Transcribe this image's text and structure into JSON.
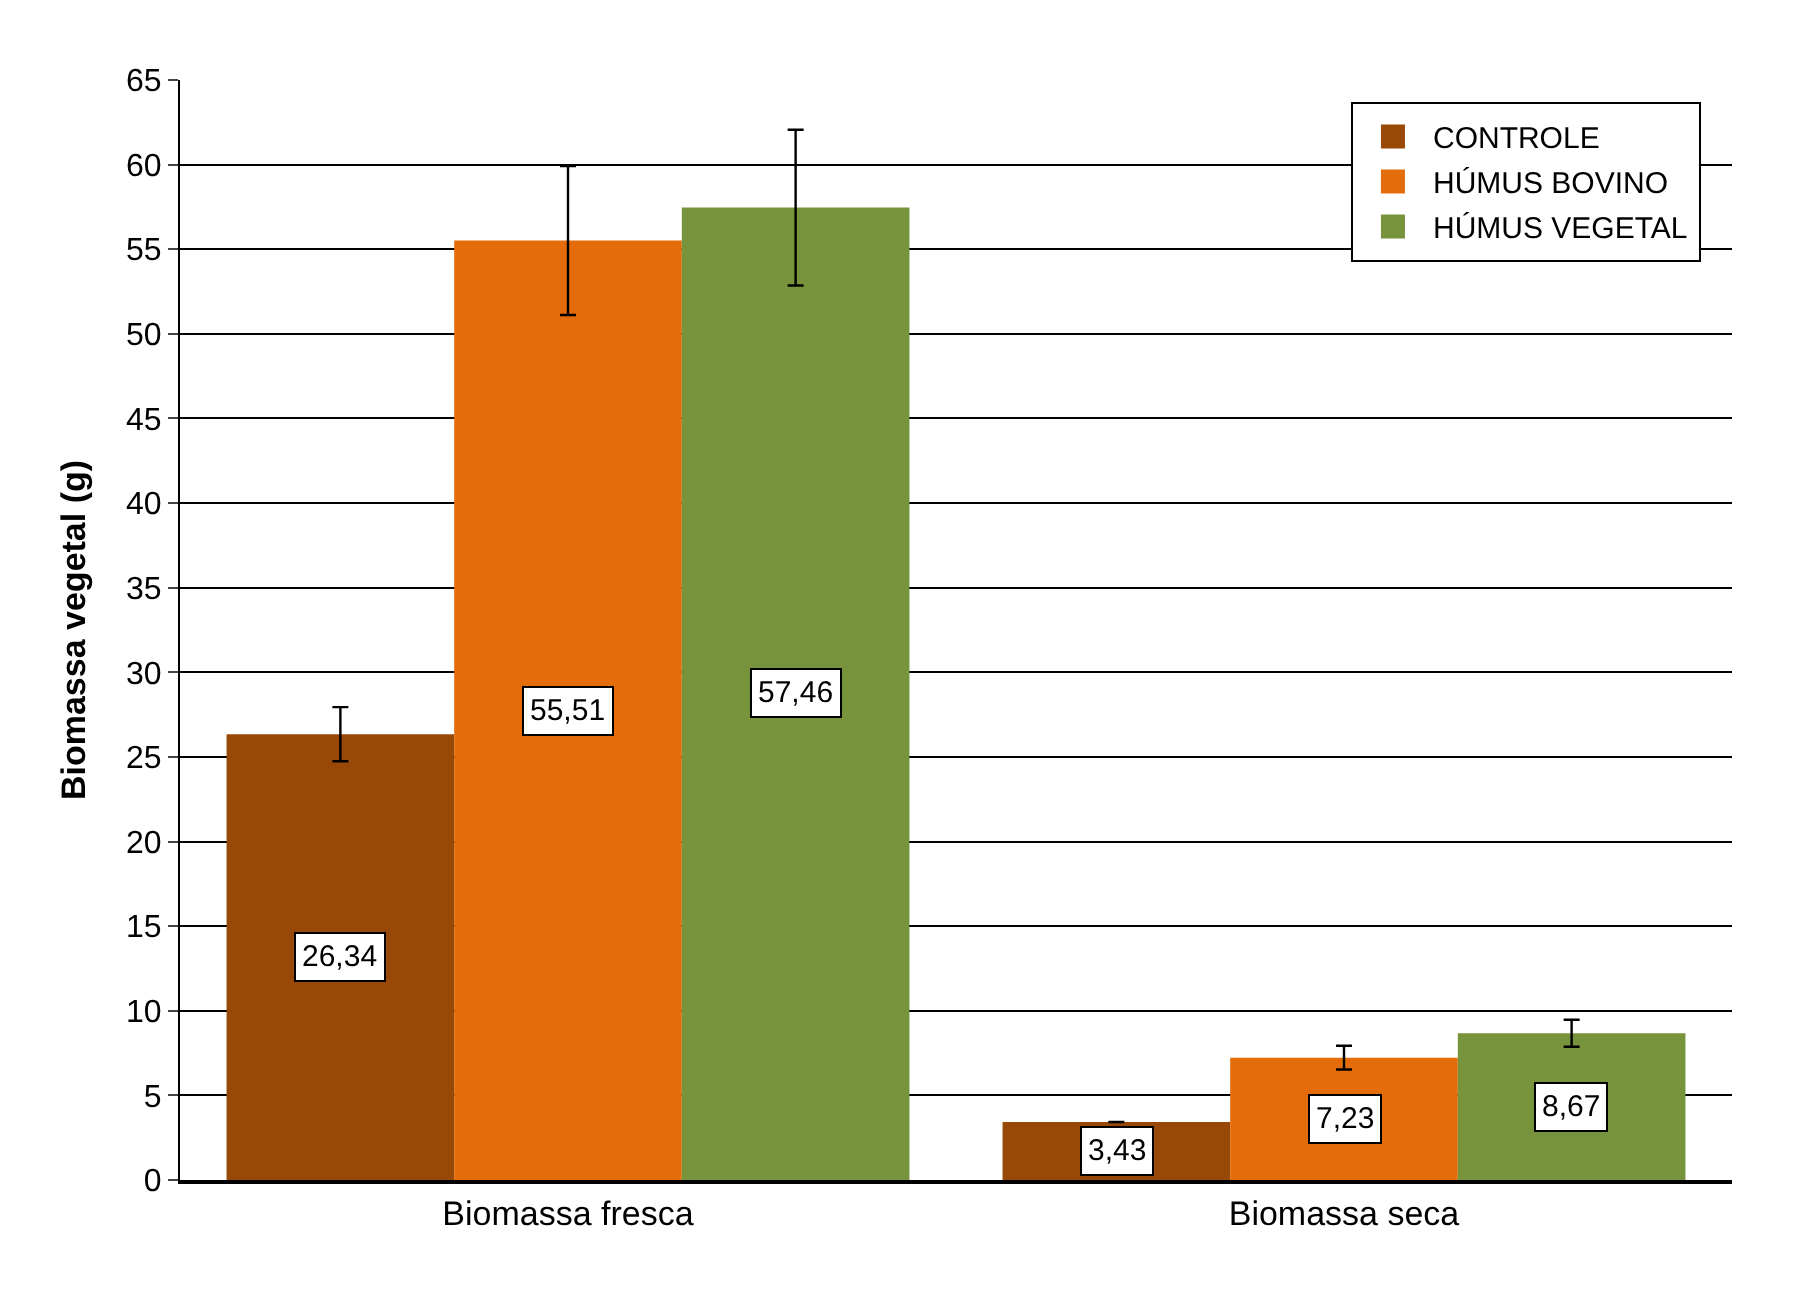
{
  "chart_data": {
    "type": "bar",
    "ylabel": "Biomassa vegetal (g)",
    "categories": [
      "Biomassa fresca",
      "Biomassa seca"
    ],
    "series": [
      {
        "name": "CONTROLE",
        "color": "#984807",
        "values": [
          26.34,
          3.43
        ],
        "errors": [
          1.6,
          null
        ],
        "value_labels": [
          "26,34",
          "3,43"
        ]
      },
      {
        "name": "HÚMUS BOVINO",
        "color": "#e46c0a",
        "values": [
          55.51,
          7.23
        ],
        "errors": [
          4.4,
          0.7
        ],
        "value_labels": [
          "55,51",
          "7,23"
        ]
      },
      {
        "name": "HÚMUS VEGETAL",
        "color": "#77933c",
        "values": [
          57.46,
          8.67
        ],
        "errors": [
          4.6,
          0.8
        ],
        "value_labels": [
          "57,46",
          "8,67"
        ]
      }
    ],
    "ylim": [
      0,
      65
    ],
    "yticks": [
      0,
      5,
      10,
      15,
      20,
      25,
      30,
      35,
      40,
      45,
      50,
      55,
      60,
      65
    ],
    "grid": "y",
    "legend": "top right"
  }
}
